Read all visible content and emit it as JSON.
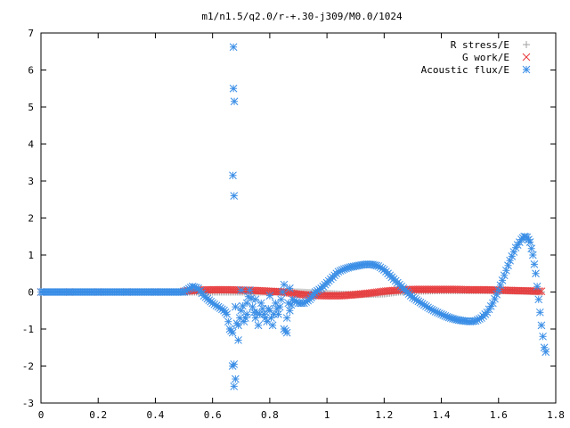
{
  "chart_data": {
    "type": "scatter",
    "title": "m1/n1.5/q2.0/r-+.30-j309/M0.0/1024",
    "xlabel": "",
    "ylabel": "",
    "xlim": [
      0,
      1.8
    ],
    "ylim": [
      -3,
      7
    ],
    "x_ticks": [
      "0",
      "0.2",
      "0.4",
      "0.6",
      "0.8",
      "1",
      "1.2",
      "1.4",
      "1.6",
      "1.8"
    ],
    "y_ticks": [
      "-3",
      "-2",
      "-1",
      "0",
      "1",
      "2",
      "3",
      "4",
      "5",
      "6",
      "7"
    ],
    "legend_position": "top-right",
    "series": [
      {
        "name": "R stress/E",
        "marker": "plus",
        "color": "#a0a0a0",
        "points": [
          [
            0.0,
            0.0
          ],
          [
            0.1,
            0.0
          ],
          [
            0.2,
            0.0
          ],
          [
            0.3,
            0.0
          ],
          [
            0.4,
            0.0
          ],
          [
            0.5,
            0.0
          ],
          [
            0.55,
            0.0
          ],
          [
            0.6,
            0.0
          ],
          [
            0.65,
            0.0
          ],
          [
            0.7,
            0.0
          ],
          [
            0.75,
            0.0
          ],
          [
            0.8,
            0.0
          ],
          [
            0.85,
            0.0
          ],
          [
            0.9,
            0.0
          ],
          [
            0.95,
            -0.02
          ],
          [
            1.0,
            -0.04
          ],
          [
            1.05,
            -0.06
          ],
          [
            1.1,
            -0.07
          ],
          [
            1.15,
            -0.06
          ],
          [
            1.2,
            -0.05
          ],
          [
            1.25,
            0.0
          ],
          [
            1.3,
            0.02
          ],
          [
            1.35,
            0.03
          ],
          [
            1.4,
            0.04
          ],
          [
            1.45,
            0.04
          ],
          [
            1.5,
            0.04
          ],
          [
            1.55,
            0.04
          ],
          [
            1.6,
            0.04
          ],
          [
            1.65,
            0.03
          ],
          [
            1.7,
            0.02
          ],
          [
            1.75,
            0.0
          ]
        ]
      },
      {
        "name": "G work/E",
        "marker": "cross",
        "color": "#e8393b",
        "points": [
          [
            0.0,
            0.0
          ],
          [
            0.1,
            0.0
          ],
          [
            0.2,
            0.0
          ],
          [
            0.3,
            0.0
          ],
          [
            0.4,
            0.0
          ],
          [
            0.5,
            0.02
          ],
          [
            0.55,
            0.05
          ],
          [
            0.6,
            0.06
          ],
          [
            0.65,
            0.06
          ],
          [
            0.7,
            0.05
          ],
          [
            0.75,
            0.04
          ],
          [
            0.8,
            0.02
          ],
          [
            0.85,
            0.0
          ],
          [
            0.9,
            -0.06
          ],
          [
            0.95,
            -0.09
          ],
          [
            1.0,
            -0.1
          ],
          [
            1.05,
            -0.1
          ],
          [
            1.1,
            -0.07
          ],
          [
            1.15,
            -0.03
          ],
          [
            1.2,
            0.02
          ],
          [
            1.25,
            0.05
          ],
          [
            1.3,
            0.07
          ],
          [
            1.35,
            0.07
          ],
          [
            1.4,
            0.07
          ],
          [
            1.45,
            0.07
          ],
          [
            1.5,
            0.06
          ],
          [
            1.55,
            0.06
          ],
          [
            1.6,
            0.05
          ],
          [
            1.65,
            0.04
          ],
          [
            1.7,
            0.03
          ],
          [
            1.75,
            0.02
          ]
        ]
      },
      {
        "name": "Acoustic flux/E",
        "marker": "star",
        "color": "#3a8ee6",
        "points": [
          [
            0.0,
            0.0
          ],
          [
            0.05,
            0.0
          ],
          [
            0.1,
            0.0
          ],
          [
            0.15,
            0.0
          ],
          [
            0.2,
            0.0
          ],
          [
            0.25,
            0.0
          ],
          [
            0.3,
            0.0
          ],
          [
            0.35,
            0.0
          ],
          [
            0.4,
            0.0
          ],
          [
            0.45,
            0.0
          ],
          [
            0.5,
            0.0
          ],
          [
            0.53,
            0.15
          ],
          [
            0.55,
            0.1
          ],
          [
            0.57,
            -0.1
          ],
          [
            0.6,
            -0.3
          ],
          [
            0.62,
            -0.4
          ],
          [
            0.64,
            -0.5
          ],
          [
            0.65,
            -0.6
          ],
          [
            0.66,
            -1.0
          ],
          [
            0.67,
            -1.1
          ],
          [
            0.67,
            -2.0
          ],
          [
            0.675,
            -1.95
          ],
          [
            0.675,
            -2.55
          ],
          [
            0.68,
            -2.35
          ],
          [
            0.68,
            -0.4
          ],
          [
            0.69,
            -1.3
          ],
          [
            0.69,
            -0.9
          ],
          [
            0.7,
            -0.5
          ],
          [
            0.7,
            0.05
          ],
          [
            0.71,
            -0.8
          ],
          [
            0.72,
            -0.6
          ],
          [
            0.72,
            -0.3
          ],
          [
            0.73,
            0.05
          ],
          [
            0.74,
            -0.4
          ],
          [
            0.75,
            -0.7
          ],
          [
            0.75,
            -0.2
          ],
          [
            0.76,
            -0.9
          ],
          [
            0.77,
            -0.3
          ],
          [
            0.78,
            -0.6
          ],
          [
            0.79,
            -0.8
          ],
          [
            0.8,
            -0.1
          ],
          [
            0.8,
            -0.5
          ],
          [
            0.81,
            -0.9
          ],
          [
            0.82,
            -0.3
          ],
          [
            0.83,
            -0.6
          ],
          [
            0.84,
            -0.2
          ],
          [
            0.85,
            0.2
          ],
          [
            0.85,
            -1.0
          ],
          [
            0.86,
            -1.1
          ],
          [
            0.86,
            -0.7
          ],
          [
            0.87,
            0.1
          ],
          [
            0.87,
            -0.5
          ],
          [
            0.88,
            -0.2
          ],
          [
            0.9,
            -0.3
          ],
          [
            0.92,
            -0.3
          ],
          [
            0.94,
            -0.2
          ],
          [
            0.95,
            -0.1
          ],
          [
            0.96,
            0.0
          ],
          [
            0.98,
            0.1
          ],
          [
            1.0,
            0.25
          ],
          [
            1.02,
            0.4
          ],
          [
            1.04,
            0.55
          ],
          [
            1.06,
            0.62
          ],
          [
            1.08,
            0.67
          ],
          [
            1.1,
            0.7
          ],
          [
            1.12,
            0.73
          ],
          [
            1.14,
            0.75
          ],
          [
            1.16,
            0.74
          ],
          [
            1.18,
            0.7
          ],
          [
            1.2,
            0.6
          ],
          [
            1.22,
            0.45
          ],
          [
            1.24,
            0.3
          ],
          [
            1.26,
            0.15
          ],
          [
            1.28,
            0.0
          ],
          [
            1.3,
            -0.15
          ],
          [
            1.32,
            -0.25
          ],
          [
            1.34,
            -0.35
          ],
          [
            1.36,
            -0.45
          ],
          [
            1.38,
            -0.53
          ],
          [
            1.4,
            -0.6
          ],
          [
            1.42,
            -0.67
          ],
          [
            1.44,
            -0.72
          ],
          [
            1.46,
            -0.76
          ],
          [
            1.48,
            -0.78
          ],
          [
            1.5,
            -0.8
          ],
          [
            1.52,
            -0.78
          ],
          [
            1.54,
            -0.7
          ],
          [
            1.56,
            -0.55
          ],
          [
            1.58,
            -0.3
          ],
          [
            1.6,
            0.05
          ],
          [
            1.62,
            0.45
          ],
          [
            1.64,
            0.85
          ],
          [
            1.66,
            1.2
          ],
          [
            1.68,
            1.42
          ],
          [
            1.69,
            1.5
          ],
          [
            1.7,
            1.48
          ],
          [
            1.71,
            1.35
          ],
          [
            1.72,
            1.0
          ],
          [
            1.73,
            0.5
          ],
          [
            1.74,
            -0.2
          ],
          [
            1.75,
            -0.9
          ],
          [
            1.76,
            -1.5
          ],
          [
            1.765,
            -1.62
          ],
          [
            0.673,
            6.62
          ],
          [
            0.673,
            5.5
          ],
          [
            0.676,
            5.15
          ],
          [
            0.671,
            3.15
          ],
          [
            0.675,
            2.6
          ]
        ]
      }
    ]
  }
}
